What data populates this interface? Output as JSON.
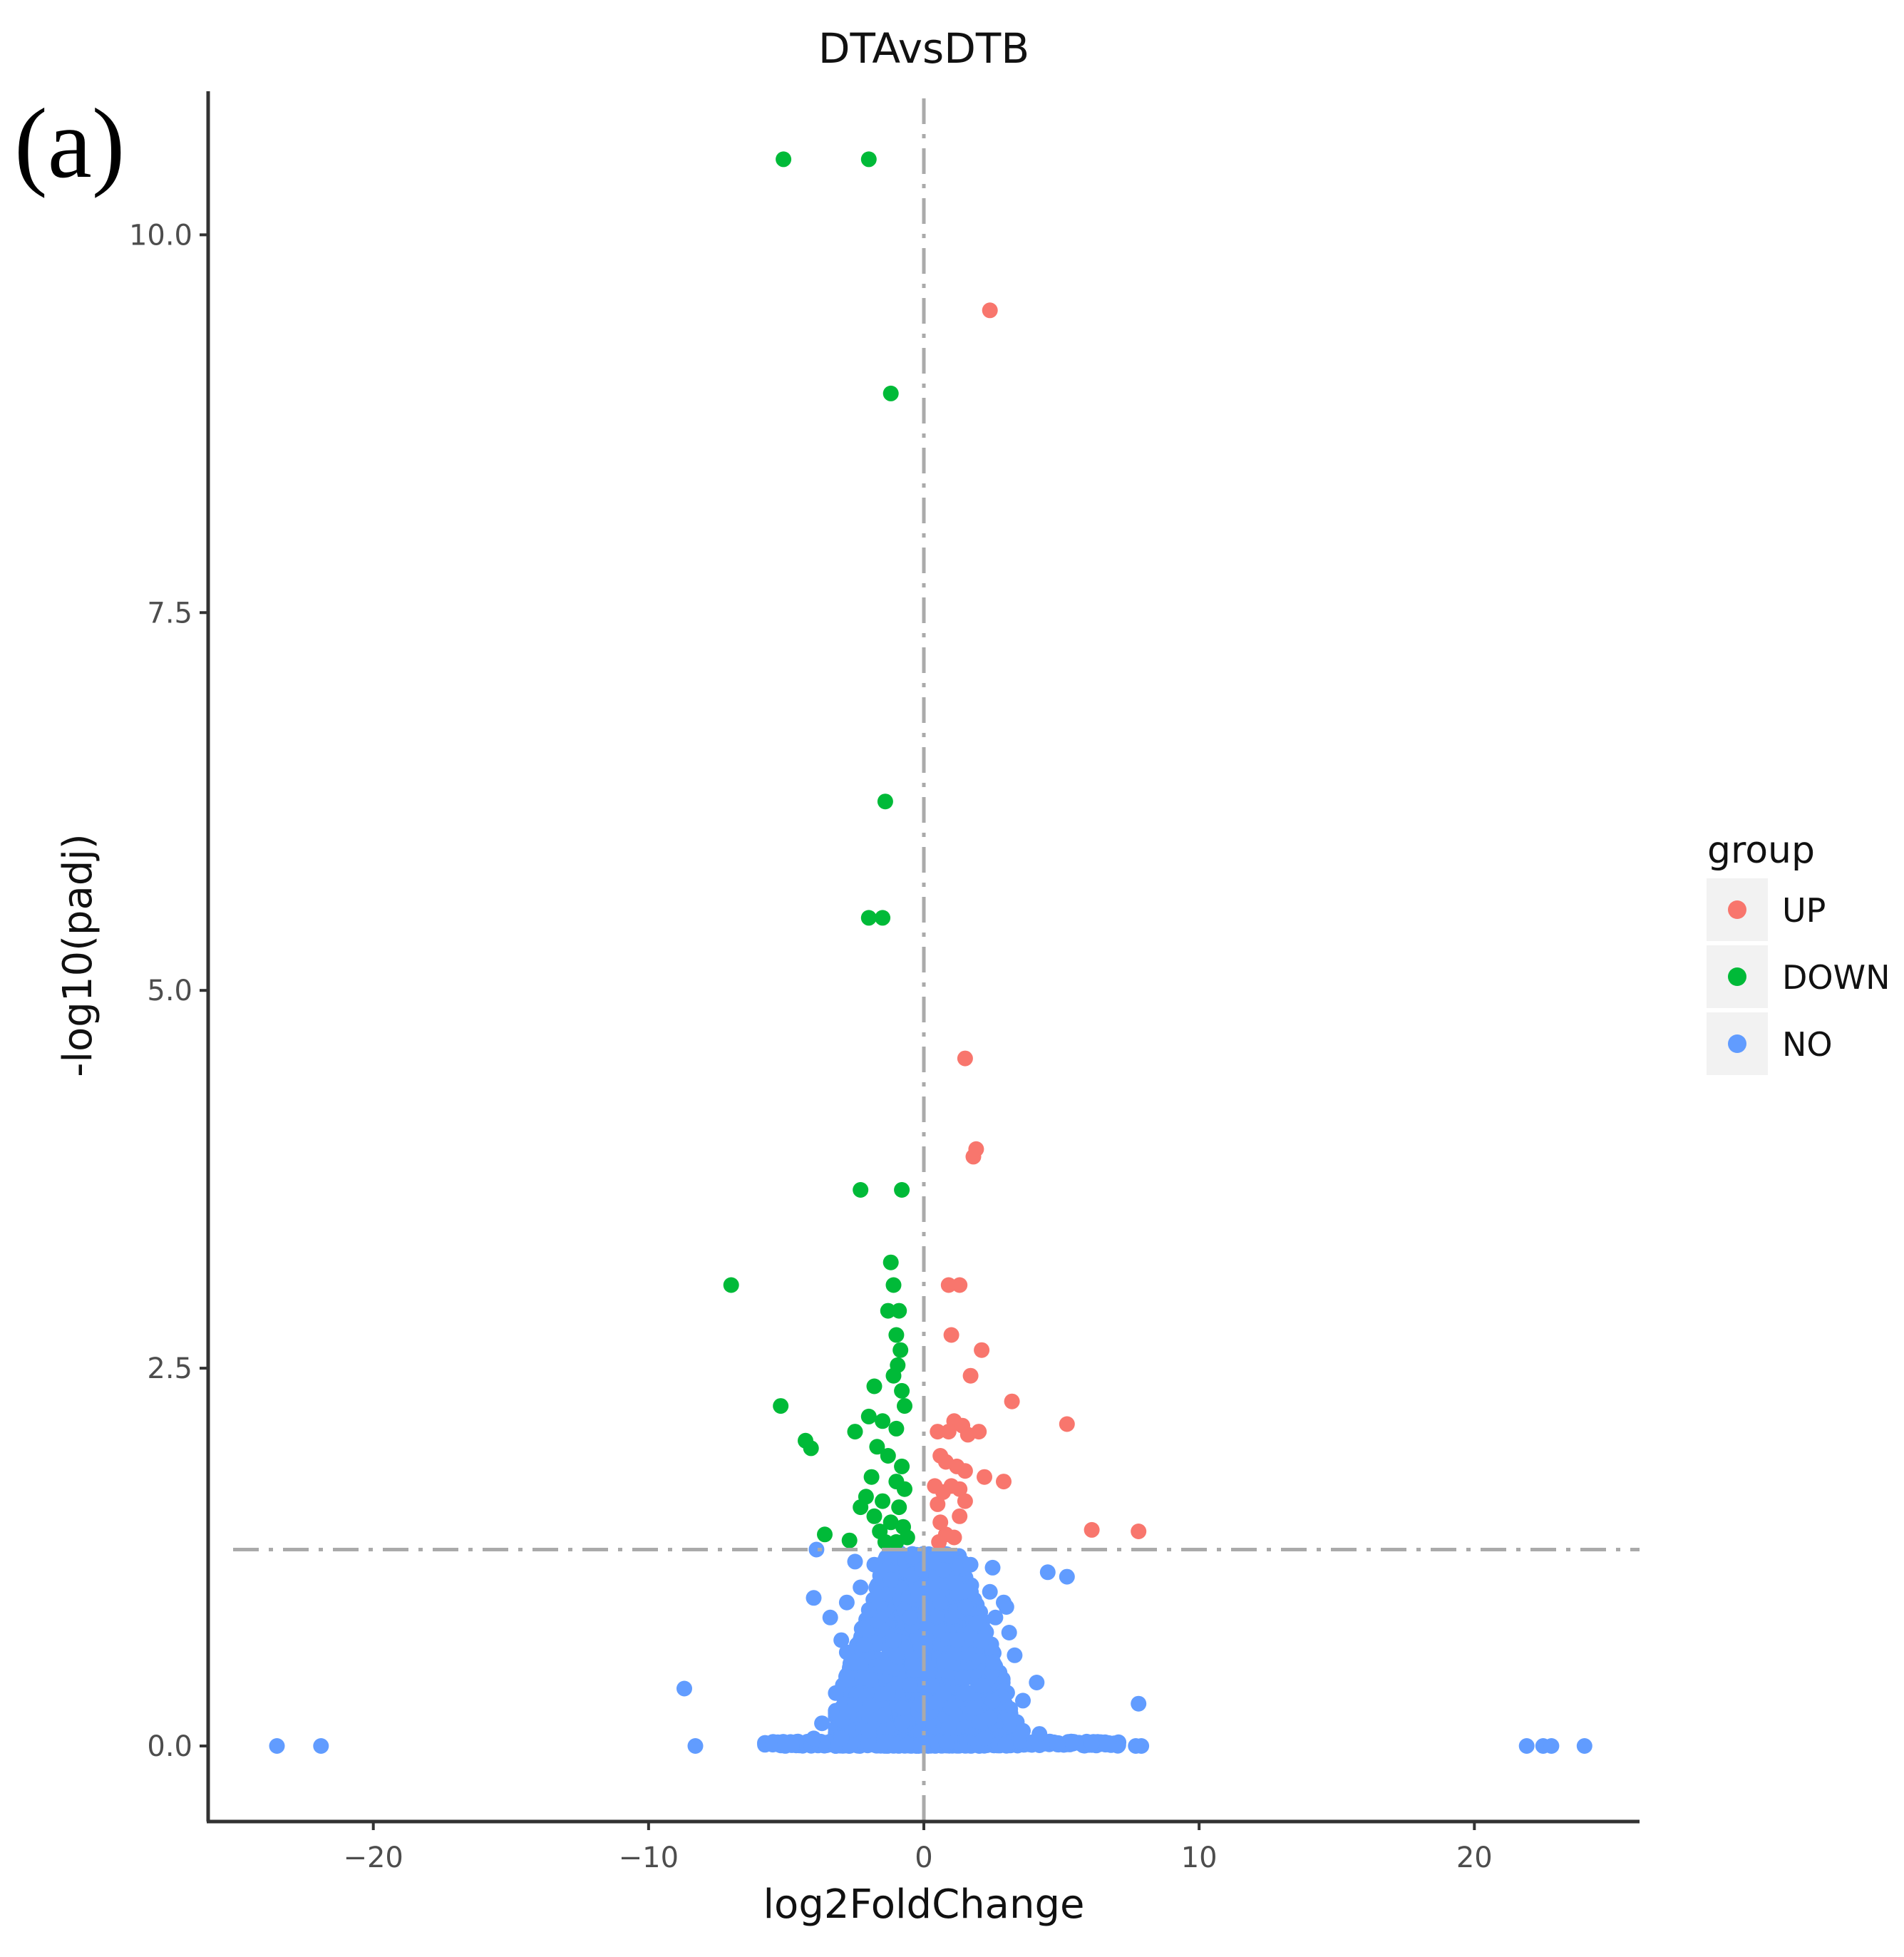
{
  "panel_label": "(a)",
  "chart_data": {
    "type": "scatter",
    "title": "DTAvsDTB",
    "xlabel": "log2FoldChange",
    "ylabel": "-log10(padj)",
    "xlim": [
      -26,
      26
    ],
    "ylim": [
      -0.5,
      10.95
    ],
    "xticks": [
      -20,
      -10,
      0,
      10,
      20
    ],
    "xtick_labels": [
      "−20",
      "−10",
      "0",
      "10",
      "20"
    ],
    "yticks": [
      0,
      2.5,
      5,
      7.5,
      10
    ],
    "ytick_labels": [
      "0.0",
      "2.5",
      "5.0",
      "7.5",
      "10.0"
    ],
    "threshold_x": 0,
    "threshold_y": 1.3,
    "grid": false,
    "legend": {
      "title": "group",
      "position": "right",
      "items": [
        {
          "label": "UP",
          "color": "#f8766d"
        },
        {
          "label": "DOWN",
          "color": "#00ba38"
        },
        {
          "label": "NO",
          "color": "#619cff"
        }
      ]
    },
    "series": [
      {
        "name": "UP",
        "color": "#f8766d",
        "points": [
          [
            2.4,
            9.5
          ],
          [
            1.5,
            4.55
          ],
          [
            1.8,
            3.9
          ],
          [
            1.9,
            3.95
          ],
          [
            0.9,
            3.05
          ],
          [
            1.3,
            3.05
          ],
          [
            1.0,
            2.72
          ],
          [
            2.1,
            2.62
          ],
          [
            1.7,
            2.45
          ],
          [
            3.2,
            2.28
          ],
          [
            5.2,
            2.13
          ],
          [
            1.1,
            2.15
          ],
          [
            1.4,
            2.12
          ],
          [
            0.5,
            2.08
          ],
          [
            0.9,
            2.08
          ],
          [
            1.6,
            2.06
          ],
          [
            2.0,
            2.08
          ],
          [
            0.6,
            1.92
          ],
          [
            0.8,
            1.88
          ],
          [
            1.2,
            1.85
          ],
          [
            1.5,
            1.82
          ],
          [
            2.2,
            1.78
          ],
          [
            2.9,
            1.75
          ],
          [
            0.4,
            1.72
          ],
          [
            0.7,
            1.68
          ],
          [
            1.0,
            1.72
          ],
          [
            1.3,
            1.7
          ],
          [
            0.5,
            1.6
          ],
          [
            1.5,
            1.62
          ],
          [
            0.6,
            1.48
          ],
          [
            1.3,
            1.52
          ],
          [
            0.8,
            1.4
          ],
          [
            1.1,
            1.38
          ],
          [
            0.55,
            1.35
          ],
          [
            6.1,
            1.43
          ],
          [
            7.8,
            1.42
          ]
        ]
      },
      {
        "name": "DOWN",
        "color": "#00ba38",
        "points": [
          [
            -5.1,
            10.5
          ],
          [
            -2.0,
            10.5
          ],
          [
            -1.2,
            8.95
          ],
          [
            -1.4,
            6.25
          ],
          [
            -2.0,
            5.48
          ],
          [
            -1.5,
            5.48
          ],
          [
            -2.3,
            3.68
          ],
          [
            -0.8,
            3.68
          ],
          [
            -7.0,
            3.05
          ],
          [
            -1.2,
            3.2
          ],
          [
            -1.1,
            3.05
          ],
          [
            -1.3,
            2.88
          ],
          [
            -0.9,
            2.88
          ],
          [
            -1.0,
            2.72
          ],
          [
            -0.85,
            2.62
          ],
          [
            -0.95,
            2.52
          ],
          [
            -1.1,
            2.45
          ],
          [
            -1.8,
            2.38
          ],
          [
            -0.8,
            2.35
          ],
          [
            -5.2,
            2.25
          ],
          [
            -2.0,
            2.18
          ],
          [
            -1.5,
            2.15
          ],
          [
            -1.0,
            2.1
          ],
          [
            -0.7,
            2.25
          ],
          [
            -2.5,
            2.08
          ],
          [
            -4.3,
            2.02
          ],
          [
            -4.1,
            1.97
          ],
          [
            -1.7,
            1.98
          ],
          [
            -1.3,
            1.92
          ],
          [
            -0.8,
            1.85
          ],
          [
            -1.9,
            1.78
          ],
          [
            -1.0,
            1.75
          ],
          [
            -0.7,
            1.7
          ],
          [
            -2.1,
            1.65
          ],
          [
            -1.5,
            1.62
          ],
          [
            -2.3,
            1.58
          ],
          [
            -0.9,
            1.58
          ],
          [
            -1.8,
            1.52
          ],
          [
            -1.2,
            1.48
          ],
          [
            -0.75,
            1.45
          ],
          [
            -3.6,
            1.4
          ],
          [
            -1.6,
            1.42
          ],
          [
            -0.6,
            1.38
          ],
          [
            -2.7,
            1.36
          ],
          [
            -1.0,
            1.35
          ],
          [
            -1.4,
            1.35
          ]
        ]
      },
      {
        "name": "NO",
        "color": "#619cff",
        "points": [
          [
            -23.5,
            0
          ],
          [
            -21.9,
            0
          ],
          [
            -8.3,
            0
          ],
          [
            -8.7,
            0.38
          ],
          [
            -3.7,
            0.15
          ],
          [
            -4.0,
            0.98
          ],
          [
            -3.9,
            1.3
          ],
          [
            -2.8,
            0.62
          ],
          [
            4.5,
            1.15
          ],
          [
            5.2,
            1.12
          ],
          [
            4.1,
            0.42
          ],
          [
            7.8,
            0.28
          ],
          [
            7.9,
            0
          ],
          [
            7.7,
            0
          ],
          [
            21.9,
            0
          ],
          [
            22.5,
            0
          ],
          [
            22.8,
            0
          ],
          [
            24.0,
            0
          ],
          [
            -0.4,
            1.25
          ],
          [
            0.3,
            1.22
          ],
          [
            -1.2,
            1.1
          ],
          [
            1.1,
            1.08
          ],
          [
            -2.3,
            1.05
          ],
          [
            2.4,
            1.02
          ],
          [
            -2.0,
            0.9
          ],
          [
            2.6,
            0.85
          ],
          [
            -3.0,
            0.7
          ],
          [
            3.1,
            0.75
          ],
          [
            -2.6,
            0.55
          ],
          [
            3.3,
            0.6
          ],
          [
            -3.2,
            0.35
          ],
          [
            3.6,
            0.3
          ],
          [
            -1.5,
            0.2
          ],
          [
            1.8,
            0.25
          ],
          [
            -3.0,
            0.05
          ],
          [
            3.6,
            0.1
          ],
          [
            -2.2,
            0.45
          ],
          [
            2.1,
            0.4
          ],
          [
            -1.0,
            0.6
          ],
          [
            1.2,
            0.7
          ],
          [
            -0.5,
            0.85
          ],
          [
            0.6,
            0.95
          ],
          [
            -2.8,
            0.95
          ],
          [
            2.9,
            0.95
          ],
          [
            -1.8,
            1.2
          ],
          [
            1.7,
            1.2
          ],
          [
            -2.5,
            1.22
          ],
          [
            2.5,
            1.18
          ],
          [
            -3.4,
            0.85
          ],
          [
            3.0,
            0.92
          ],
          [
            -1.3,
            0.35
          ],
          [
            1.4,
            0.45
          ],
          [
            -0.8,
            0.15
          ],
          [
            0.9,
            0.12
          ],
          [
            -4.0,
            0.05
          ],
          [
            4.2,
            0.08
          ],
          [
            -2.0,
            0.1
          ],
          [
            2.2,
            0.05
          ],
          [
            -0.3,
            0.5
          ],
          [
            0.3,
            0.4
          ],
          [
            -0.2,
            1.0
          ],
          [
            0.2,
            1.05
          ]
        ]
      }
    ],
    "dense_regions": [
      {
        "name": "NO",
        "color": "#619cff",
        "x_range": [
          -3.2,
          3.7
        ],
        "y_range": [
          0,
          1.28
        ],
        "density": "high"
      },
      {
        "name": "NO",
        "color": "#619cff",
        "x_range": [
          -5.8,
          7.1
        ],
        "y_range": [
          0,
          0.03
        ],
        "density": "band"
      }
    ]
  }
}
